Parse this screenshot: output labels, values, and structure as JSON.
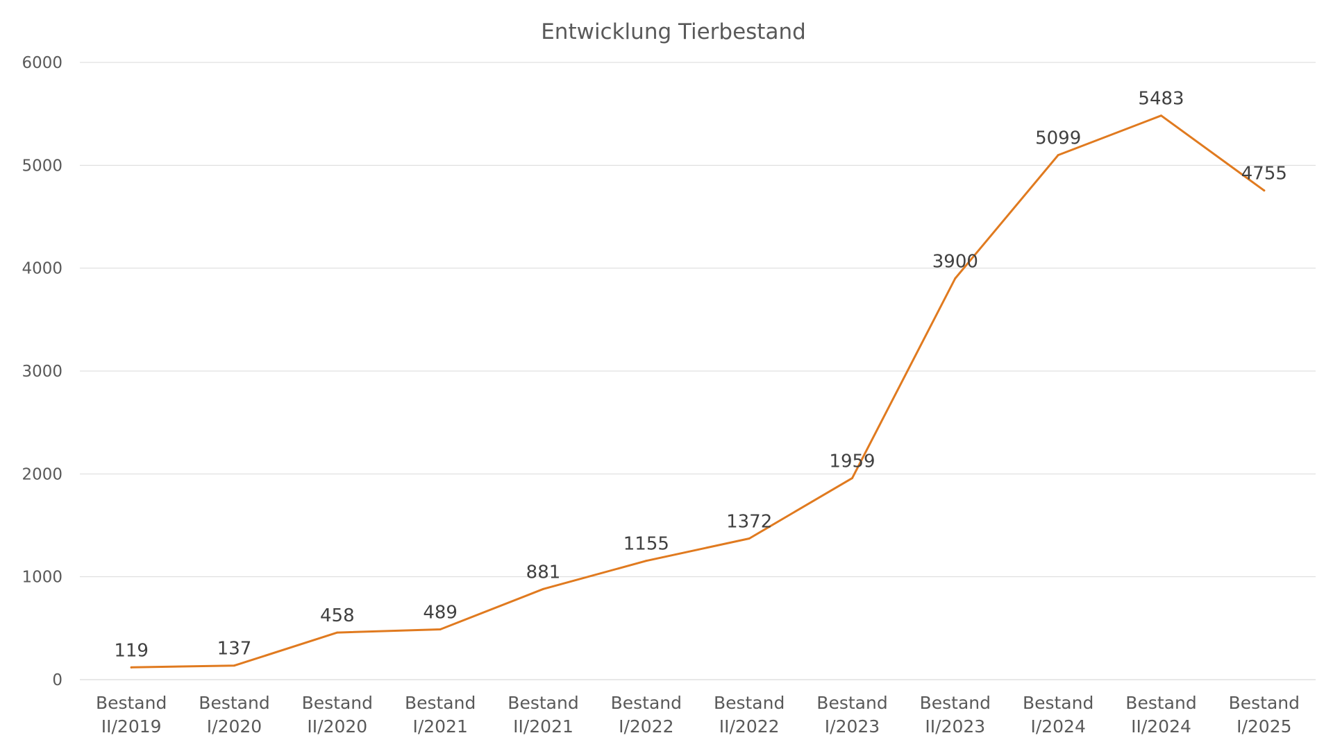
{
  "chart_data": {
    "type": "line",
    "title": "Entwicklung Tierbestand",
    "xlabel": "",
    "ylabel": "",
    "ylim": [
      0,
      6000
    ],
    "yticks": [
      "0",
      "1000",
      "2000",
      "3000",
      "4000",
      "5000",
      "6000"
    ],
    "grid": true,
    "legend": "none",
    "categories": [
      [
        "Bestand",
        "II/2019"
      ],
      [
        "Bestand",
        "I/2020"
      ],
      [
        "Bestand",
        "II/2020"
      ],
      [
        "Bestand",
        "I/2021"
      ],
      [
        "Bestand",
        "II/2021"
      ],
      [
        "Bestand",
        "I/2022"
      ],
      [
        "Bestand",
        "II/2022"
      ],
      [
        "Bestand",
        "I/2023"
      ],
      [
        "Bestand",
        "II/2023"
      ],
      [
        "Bestand",
        "I/2024"
      ],
      [
        "Bestand",
        "II/2024"
      ],
      [
        "Bestand",
        "I/2025"
      ]
    ],
    "series": [
      {
        "values": [
          119,
          137,
          458,
          489,
          881,
          1155,
          1372,
          1959,
          3900,
          5099,
          5483,
          4755
        ],
        "color": "#E07A1F"
      }
    ]
  }
}
